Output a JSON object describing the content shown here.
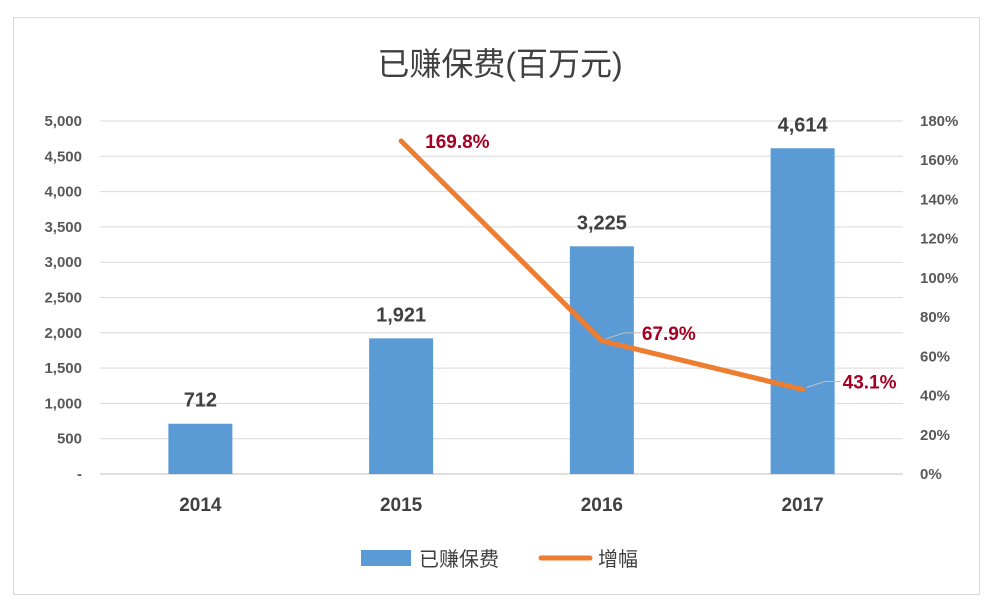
{
  "chart_data": {
    "type": "bar",
    "title": "已赚保费(百万元)",
    "categories": [
      "2014",
      "2015",
      "2016",
      "2017"
    ],
    "series": [
      {
        "name": "已赚保费",
        "type": "bar",
        "axis": "left",
        "color": "#5b9bd5",
        "values": [
          712,
          1921,
          3225,
          4614
        ],
        "labels": [
          "712",
          "1,921",
          "3,225",
          "4,614"
        ]
      },
      {
        "name": "增幅",
        "type": "line",
        "axis": "right",
        "color": "#ed7d31",
        "values": [
          null,
          169.8,
          67.9,
          43.1
        ],
        "labels": [
          "",
          "169.8%",
          "67.9%",
          "43.1%"
        ],
        "label_color": "#a50021"
      }
    ],
    "y_left": {
      "ylim": [
        0,
        5000
      ],
      "ticks": [
        0,
        500,
        1000,
        1500,
        2000,
        2500,
        3000,
        3500,
        4000,
        4500,
        5000
      ],
      "tick_labels": [
        "-",
        "500",
        "1,000",
        "1,500",
        "2,000",
        "2,500",
        "3,000",
        "3,500",
        "4,000",
        "4,500",
        "5,000"
      ]
    },
    "y_right": {
      "ylim": [
        0,
        180
      ],
      "ticks": [
        0,
        20,
        40,
        60,
        80,
        100,
        120,
        140,
        160,
        180
      ],
      "tick_labels": [
        "0%",
        "20%",
        "40%",
        "60%",
        "80%",
        "100%",
        "120%",
        "140%",
        "160%",
        "180%"
      ]
    },
    "grid": true,
    "legend": "bottom-center"
  }
}
